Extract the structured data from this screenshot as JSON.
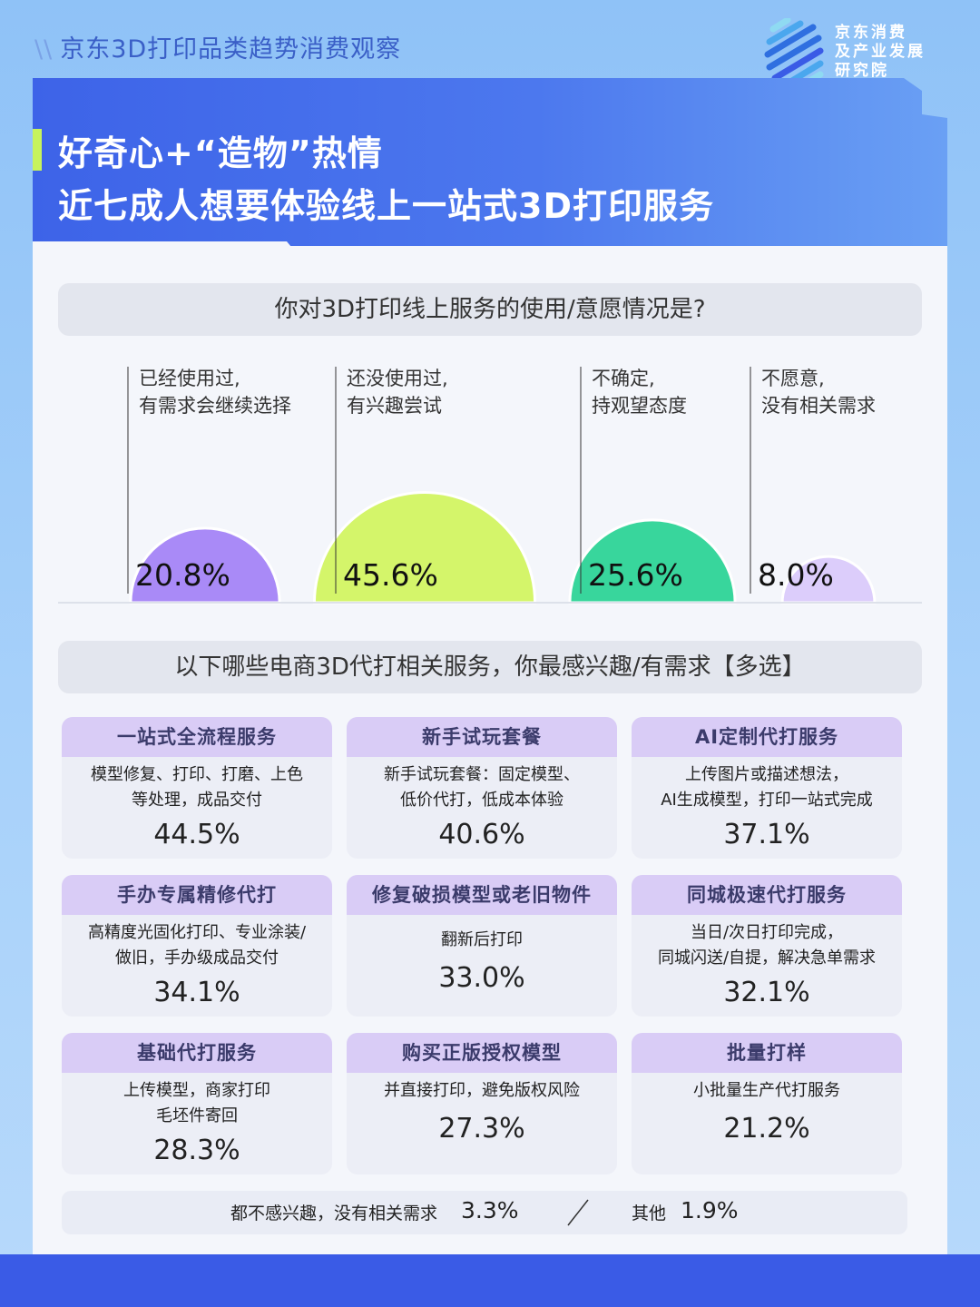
{
  "header": {
    "source_line": "京东3D打印品类趋势消费观察",
    "logo_text": [
      "京东消费",
      "及产业发展",
      "研究院"
    ],
    "title_line1": "好奇心+“造物”热情",
    "title_line2": "近七成人想要体验线上一站式3D打印服务"
  },
  "question1": "你对3D打印线上服务的使用/意愿情况是?",
  "question2": "以下哪些电商3D代打相关服务，你最感兴趣/有需求【多选】",
  "chart_data": [
    {
      "type": "bubble-semicircle",
      "title": "你对3D打印线上服务的使用/意愿情况是?",
      "unit": "%",
      "categories": [
        {
          "label_line1": "已经使用过,",
          "label_line2": "有需求会继续选择",
          "value": 20.8,
          "display": "20.8%",
          "color": "#a98af7"
        },
        {
          "label_line1": "还没使用过,",
          "label_line2": "有兴趣尝试",
          "value": 45.6,
          "display": "45.6%",
          "color": "#d4f56a"
        },
        {
          "label_line1": "不确定,",
          "label_line2": "持观望态度",
          "value": 25.6,
          "display": "25.6%",
          "color": "#38d69c"
        },
        {
          "label_line1": "不愿意,",
          "label_line2": "没有相关需求",
          "value": 8.0,
          "display": "8.0%",
          "color": "#dccdfb"
        }
      ]
    },
    {
      "type": "table",
      "title": "以下哪些电商3D代打相关服务，你最感兴趣/有需求【多选】",
      "unit": "%",
      "items": [
        {
          "name": "一站式全流程服务",
          "desc": [
            "模型修复、打印、打磨、上色",
            "等处理，成品交付"
          ],
          "value": 44.5,
          "display": "44.5%"
        },
        {
          "name": "新手试玩套餐",
          "desc": [
            "新手试玩套餐：固定模型、",
            "低价代打，低成本体验"
          ],
          "value": 40.6,
          "display": "40.6%"
        },
        {
          "name": "AI定制代打服务",
          "desc": [
            "上传图片或描述想法，",
            "AI生成模型，打印一站式完成"
          ],
          "value": 37.1,
          "display": "37.1%"
        },
        {
          "name": "手办专属精修代打",
          "desc": [
            "高精度光固化打印、专业涂装/",
            "做旧，手办级成品交付"
          ],
          "value": 34.1,
          "display": "34.1%"
        },
        {
          "name": "修复破损模型或老旧物件",
          "desc": [
            "翻新后打印"
          ],
          "value": 33.0,
          "display": "33.0%"
        },
        {
          "name": "同城极速代打服务",
          "desc": [
            "当日/次日打印完成，",
            "同城闪送/自提，解决急单需求"
          ],
          "value": 32.1,
          "display": "32.1%"
        },
        {
          "name": "基础代打服务",
          "desc": [
            "上传模型，商家打印",
            "毛坯件寄回"
          ],
          "value": 28.3,
          "display": "28.3%"
        },
        {
          "name": "购买正版授权模型",
          "desc": [
            "并直接打印，避免版权风险"
          ],
          "value": 27.3,
          "display": "27.3%"
        },
        {
          "name": "批量打样",
          "desc": [
            "小批量生产代打服务"
          ],
          "value": 21.2,
          "display": "21.2%"
        }
      ],
      "footer": [
        {
          "label": "都不感兴趣，没有相关需求",
          "value": 3.3,
          "display": "3.3%"
        },
        {
          "label": "其他",
          "value": 1.9,
          "display": "1.9%"
        }
      ]
    }
  ]
}
